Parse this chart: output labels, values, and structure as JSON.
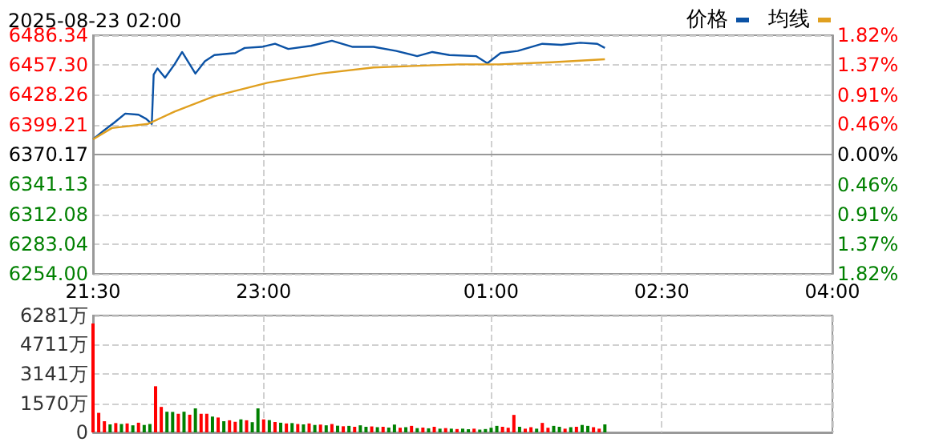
{
  "chart_data": [
    {
      "type": "line",
      "title": "2025-08-23 02:00",
      "legend": "top right",
      "grid": true,
      "marker": "none",
      "line_style": "solid",
      "xlim": [
        "2025-08-22T21:30",
        "2025-08-23T04:00"
      ],
      "xticks": [
        {
          "value": "2025-08-22T21:30",
          "label": "21:30"
        },
        {
          "value": "2025-08-22T23:00",
          "label": "23:00"
        },
        {
          "value": "2025-08-23T01:00",
          "label": "01:00"
        },
        {
          "value": "2025-08-23T02:30",
          "label": "02:30"
        },
        {
          "value": "2025-08-23T04:00",
          "label": "04:00"
        }
      ],
      "ylim": [
        6254.0,
        6486.34
      ],
      "yticks": [
        {
          "value": 6254.0,
          "label": "6254.00"
        },
        {
          "value": 6283.04,
          "label": "6283.04"
        },
        {
          "value": 6312.08,
          "label": "6312.08"
        },
        {
          "value": 6341.13,
          "label": "6341.13"
        },
        {
          "value": 6370.17,
          "label": "6370.17"
        },
        {
          "value": 6399.21,
          "label": "6399.21"
        },
        {
          "value": 6428.26,
          "label": "6428.26"
        },
        {
          "value": 6457.3,
          "label": "6457.30"
        },
        {
          "value": 6486.34,
          "label": "6486.34"
        }
      ],
      "y2lim": [
        -1.82,
        1.82
      ],
      "y2ticks": [
        {
          "value": -1.82,
          "label": "1.82%"
        },
        {
          "value": -1.37,
          "label": "1.37%"
        },
        {
          "value": -0.91,
          "label": "0.91%"
        },
        {
          "value": -0.46,
          "label": "0.46%"
        },
        {
          "value": 0,
          "label": "0.00%"
        },
        {
          "value": 0.46,
          "label": "0.46%"
        },
        {
          "value": 0.91,
          "label": "0.91%"
        },
        {
          "value": 1.37,
          "label": "1.37%"
        },
        {
          "value": 1.82,
          "label": "1.82%"
        }
      ],
      "series": [
        {
          "name": "价格",
          "color": "#0b52a5",
          "x": [
            "2025-08-22T21:30",
            "2025-08-22T21:36",
            "2025-08-22T21:41",
            "2025-08-22T21:47",
            "2025-08-22T21:54",
            "2025-08-22T21:58",
            "2025-08-22T22:01",
            "2025-08-22T22:02",
            "2025-08-22T22:04",
            "2025-08-22T22:08",
            "2025-08-22T22:13",
            "2025-08-22T22:17",
            "2025-08-22T22:24",
            "2025-08-22T22:29",
            "2025-08-22T22:34",
            "2025-08-22T22:45",
            "2025-08-22T22:50",
            "2025-08-22T22:59",
            "2025-08-22T23:06",
            "2025-08-22T23:13",
            "2025-08-22T23:25",
            "2025-08-22T23:36",
            "2025-08-22T23:47",
            "2025-08-22T23:58",
            "2025-08-23T00:10",
            "2025-08-23T00:21",
            "2025-08-23T00:29",
            "2025-08-23T00:38",
            "2025-08-23T00:52",
            "2025-08-23T00:58",
            "2025-08-23T01:05",
            "2025-08-23T01:14",
            "2025-08-23T01:27",
            "2025-08-23T01:37",
            "2025-08-23T01:47",
            "2025-08-23T01:56",
            "2025-08-23T02:00"
          ],
          "values": [
            6385,
            6394,
            6401,
            6410,
            6409,
            6405,
            6400,
            6448,
            6454,
            6445,
            6458,
            6470,
            6449,
            6461,
            6467,
            6469,
            6474,
            6475,
            6478,
            6473,
            6476,
            6481,
            6475,
            6475,
            6471,
            6466,
            6470,
            6467,
            6466,
            6459,
            6469,
            6471,
            6478,
            6477,
            6479,
            6478,
            6474
          ]
        },
        {
          "name": "均线",
          "color": "#e0a020",
          "x": [
            "2025-08-22T21:30",
            "2025-08-22T21:40",
            "2025-08-22T21:59",
            "2025-08-22T22:13",
            "2025-08-22T22:34",
            "2025-08-22T23:02",
            "2025-08-22T23:30",
            "2025-08-22T23:58",
            "2025-08-23T00:43",
            "2025-08-23T01:04",
            "2025-08-23T01:32",
            "2025-08-23T02:00"
          ],
          "values": [
            6385,
            6396,
            6400,
            6412,
            6427,
            6440,
            6449,
            6455,
            6458,
            6458,
            6460,
            6463
          ]
        }
      ]
    },
    {
      "type": "bar",
      "grid": true,
      "tick_labels": "y",
      "xlim": [
        "2025-08-22T21:30",
        "2025-08-23T04:00"
      ],
      "xticks": [
        "2025-08-22T21:30",
        "2025-08-22T23:00",
        "2025-08-23T01:00",
        "2025-08-23T02:30",
        "2025-08-23T04:00"
      ],
      "ylim": [
        0,
        6281
      ],
      "yticks": [
        {
          "value": 0,
          "label": "0"
        },
        {
          "value": 1570,
          "label": "1570万"
        },
        {
          "value": 3141,
          "label": "3141万"
        },
        {
          "value": 4711,
          "label": "4711万"
        },
        {
          "value": 6281,
          "label": "6281万"
        }
      ],
      "x": [
        "2025-08-22T21:30",
        "2025-08-22T21:33",
        "2025-08-22T21:36",
        "2025-08-22T21:39",
        "2025-08-22T21:42",
        "2025-08-22T21:45",
        "2025-08-22T21:48",
        "2025-08-22T21:51",
        "2025-08-22T21:54",
        "2025-08-22T21:57",
        "2025-08-22T22:00",
        "2025-08-22T22:03",
        "2025-08-22T22:06",
        "2025-08-22T22:09",
        "2025-08-22T22:12",
        "2025-08-22T22:15",
        "2025-08-22T22:18",
        "2025-08-22T22:21",
        "2025-08-22T22:24",
        "2025-08-22T22:27",
        "2025-08-22T22:30",
        "2025-08-22T22:33",
        "2025-08-22T22:36",
        "2025-08-22T22:39",
        "2025-08-22T22:42",
        "2025-08-22T22:45",
        "2025-08-22T22:48",
        "2025-08-22T22:51",
        "2025-08-22T22:54",
        "2025-08-22T22:57",
        "2025-08-22T23:00",
        "2025-08-22T23:03",
        "2025-08-22T23:06",
        "2025-08-22T23:09",
        "2025-08-22T23:12",
        "2025-08-22T23:15",
        "2025-08-22T23:18",
        "2025-08-22T23:21",
        "2025-08-22T23:24",
        "2025-08-22T23:27",
        "2025-08-22T23:30",
        "2025-08-22T23:33",
        "2025-08-22T23:36",
        "2025-08-22T23:39",
        "2025-08-22T23:42",
        "2025-08-22T23:45",
        "2025-08-22T23:48",
        "2025-08-22T23:51",
        "2025-08-22T23:54",
        "2025-08-22T23:57",
        "2025-08-23T00:00",
        "2025-08-23T00:03",
        "2025-08-23T00:06",
        "2025-08-23T00:09",
        "2025-08-23T00:12",
        "2025-08-23T00:15",
        "2025-08-23T00:18",
        "2025-08-23T00:21",
        "2025-08-23T00:24",
        "2025-08-23T00:27",
        "2025-08-23T00:30",
        "2025-08-23T00:33",
        "2025-08-23T00:36",
        "2025-08-23T00:39",
        "2025-08-23T00:42",
        "2025-08-23T00:45",
        "2025-08-23T00:48",
        "2025-08-23T00:51",
        "2025-08-23T00:54",
        "2025-08-23T00:57",
        "2025-08-23T01:00",
        "2025-08-23T01:03",
        "2025-08-23T01:06",
        "2025-08-23T01:09",
        "2025-08-23T01:12",
        "2025-08-23T01:15",
        "2025-08-23T01:18",
        "2025-08-23T01:21",
        "2025-08-23T01:24",
        "2025-08-23T01:27",
        "2025-08-23T01:30",
        "2025-08-23T01:33",
        "2025-08-23T01:36",
        "2025-08-23T01:39",
        "2025-08-23T01:42",
        "2025-08-23T01:45",
        "2025-08-23T01:48",
        "2025-08-23T01:51",
        "2025-08-23T01:54",
        "2025-08-23T01:57",
        "2025-08-23T02:00"
      ],
      "values": [
        5850,
        1050,
        600,
        430,
        500,
        450,
        480,
        380,
        520,
        400,
        450,
        2480,
        1370,
        1110,
        1100,
        1000,
        1110,
        950,
        1290,
        1000,
        1000,
        850,
        800,
        600,
        650,
        570,
        700,
        650,
        550,
        1290,
        700,
        660,
        560,
        520,
        480,
        500,
        450,
        430,
        480,
        400,
        420,
        380,
        450,
        360,
        330,
        350,
        300,
        380,
        300,
        320,
        280,
        300,
        260,
        420,
        250,
        280,
        350,
        230,
        260,
        220,
        300,
        200,
        230,
        200,
        180,
        200,
        170,
        200,
        150,
        180,
        250,
        350,
        300,
        250,
        940,
        300,
        200,
        280,
        200,
        510,
        250,
        350,
        300,
        200,
        280,
        300,
        400,
        350,
        280,
        200,
        430
      ],
      "colors": [
        "#ff0000",
        "#ff0000",
        "#ff0000",
        "#008000",
        "#ff0000",
        "#008000",
        "#ff0000",
        "#008000",
        "#ff0000",
        "#008000",
        "#008000",
        "#ff0000",
        "#ff0000",
        "#008000",
        "#008000",
        "#ff0000",
        "#008000",
        "#ff0000",
        "#008000",
        "#ff0000",
        "#ff0000",
        "#008000",
        "#ff0000",
        "#008000",
        "#ff0000",
        "#ff0000",
        "#008000",
        "#ff0000",
        "#008000",
        "#008000",
        "#ff0000",
        "#008000",
        "#ff0000",
        "#008000",
        "#ff0000",
        "#008000",
        "#ff0000",
        "#008000",
        "#ff0000",
        "#008000",
        "#ff0000",
        "#008000",
        "#ff0000",
        "#008000",
        "#ff0000",
        "#008000",
        "#ff0000",
        "#008000",
        "#008000",
        "#ff0000",
        "#008000",
        "#ff0000",
        "#008000",
        "#008000",
        "#ff0000",
        "#008000",
        "#ff0000",
        "#008000",
        "#ff0000",
        "#008000",
        "#ff0000",
        "#008000",
        "#ff0000",
        "#008000",
        "#ff0000",
        "#008000",
        "#008000",
        "#ff0000",
        "#008000",
        "#008000",
        "#008000",
        "#008000",
        "#ff0000",
        "#ff0000",
        "#ff0000",
        "#008000",
        "#ff0000",
        "#ff0000",
        "#008000",
        "#ff0000",
        "#ff0000",
        "#008000",
        "#008000",
        "#ff0000",
        "#008000",
        "#ff0000",
        "#008000",
        "#008000",
        "#ff0000",
        "#ff0000",
        "#008000"
      ]
    }
  ]
}
